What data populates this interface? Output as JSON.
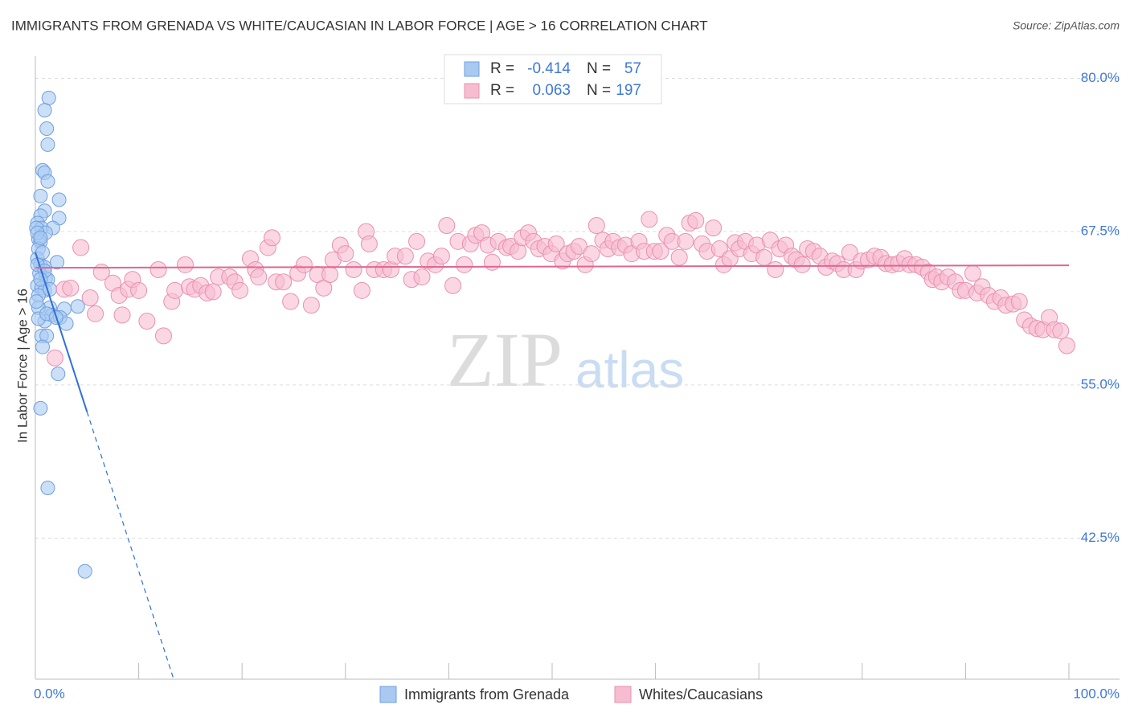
{
  "chart_data": {
    "type": "scatter",
    "title": "IMMIGRANTS FROM GRENADA VS WHITE/CAUCASIAN IN LABOR FORCE | AGE > 16 CORRELATION CHART",
    "source": "Source: ZipAtlas.com",
    "y_label": "In Labor Force | Age > 16",
    "watermark": [
      "ZIP",
      "atlas"
    ],
    "legend_labels": {
      "r": "R =",
      "n": "N ="
    },
    "xlim": [
      0,
      100
    ],
    "ylim": [
      31,
      81.8
    ],
    "xticks": [
      {
        "value": 0,
        "label": "0.0%"
      },
      {
        "value": 100,
        "label": "100.0%"
      }
    ],
    "xminor_ticks": [
      10,
      20,
      30,
      40,
      50,
      60,
      70,
      80,
      90
    ],
    "yticks": [
      {
        "value": 42.5,
        "label": "42.5%"
      },
      {
        "value": 55,
        "label": "55.0%"
      },
      {
        "value": 67.5,
        "label": "67.5%"
      },
      {
        "value": 80,
        "label": "80.0%"
      }
    ],
    "grid": true,
    "series": [
      {
        "name": "Immigrants from Grenada",
        "color": "#a9c9f1",
        "stroke": "#6fa0e0",
        "line_color": "#2f6fd6",
        "r": -0.414,
        "n": 57,
        "trend": {
          "intercept": 65.8,
          "slope": -2.6,
          "solid_until": 5
        },
        "x": [
          1.3,
          0.9,
          1.1,
          1.2,
          0.7,
          0.9,
          1.2,
          0.5,
          2.3,
          0.9,
          0.5,
          2.3,
          0.2,
          0.6,
          1.7,
          0.1,
          1.0,
          0.3,
          0.5,
          0.3,
          0.2,
          0.5,
          0.9,
          2.1,
          0.4,
          1.0,
          1.2,
          0.2,
          0.6,
          0.9,
          0.3,
          1.4,
          0.3,
          2.8,
          4.1,
          1.6,
          0.9,
          2.4,
          3.0,
          0.3,
          0.6,
          1.1,
          0.7,
          2.2,
          0.5,
          1.2,
          4.8,
          0.2,
          0.5,
          0.7,
          0.2,
          0.9,
          0.5,
          1.4,
          1.1,
          0.1,
          2.0
        ],
        "values": [
          78.4,
          77.4,
          75.9,
          74.6,
          72.5,
          72.3,
          71.6,
          70.4,
          70.1,
          69.2,
          68.8,
          68.6,
          68.2,
          67.8,
          67.8,
          67.8,
          67.4,
          66.9,
          66.7,
          66.1,
          65.3,
          64.8,
          64.6,
          65.0,
          64.1,
          63.7,
          63.6,
          63.1,
          62.9,
          62.7,
          62.3,
          61.3,
          61.3,
          61.2,
          61.4,
          60.7,
          60.2,
          60.5,
          60.0,
          60.4,
          59.0,
          59.0,
          58.1,
          55.9,
          53.1,
          46.6,
          39.8,
          67.4,
          67.0,
          65.8,
          64.8,
          64.3,
          63.6,
          62.8,
          60.8,
          61.8,
          60.5
        ]
      },
      {
        "name": "Whites/Caucasians",
        "color": "#f6bcd0",
        "stroke": "#ea90b0",
        "line_color": "#e0668f",
        "r": 0.063,
        "n": 197,
        "trend": {
          "intercept": 64.55,
          "slope": 0.002
        },
        "x": [
          1.9,
          2.8,
          3.4,
          4.4,
          5.3,
          5.8,
          6.4,
          7.5,
          8.4,
          8.1,
          9.0,
          9.4,
          10.0,
          10.8,
          11.9,
          12.4,
          13.2,
          13.5,
          14.5,
          14.9,
          15.4,
          16.0,
          16.6,
          17.2,
          17.7,
          18.8,
          19.3,
          19.8,
          20.8,
          21.3,
          21.6,
          22.5,
          22.9,
          23.3,
          24.0,
          24.7,
          25.4,
          26.0,
          26.7,
          27.3,
          27.9,
          28.5,
          28.8,
          29.5,
          30.0,
          30.8,
          31.6,
          32.0,
          32.3,
          32.8,
          33.7,
          34.4,
          34.8,
          35.8,
          36.4,
          36.9,
          37.4,
          38.0,
          38.7,
          39.3,
          39.8,
          40.4,
          40.9,
          41.5,
          42.1,
          42.6,
          43.2,
          43.8,
          44.2,
          44.8,
          45.6,
          46.0,
          46.7,
          47.1,
          47.7,
          48.2,
          48.7,
          49.3,
          49.9,
          50.4,
          51.0,
          51.5,
          52.1,
          52.6,
          53.2,
          53.8,
          54.3,
          54.9,
          55.4,
          55.9,
          56.5,
          57.1,
          57.7,
          58.4,
          58.9,
          59.4,
          59.9,
          60.5,
          61.1,
          61.6,
          62.3,
          62.9,
          63.3,
          63.9,
          64.5,
          65.0,
          65.6,
          66.2,
          66.6,
          67.2,
          67.7,
          68.1,
          68.7,
          69.3,
          69.8,
          70.5,
          71.1,
          71.6,
          72.0,
          72.6,
          73.2,
          73.6,
          74.2,
          74.7,
          75.3,
          75.9,
          76.5,
          77.1,
          77.6,
          78.2,
          78.8,
          79.4,
          79.9,
          80.6,
          81.2,
          81.8,
          82.3,
          82.9,
          83.5,
          84.1,
          84.6,
          85.2,
          85.8,
          86.4,
          86.8,
          87.2,
          87.7,
          88.3,
          89.0,
          89.5,
          90.0,
          90.7,
          91.1,
          91.6,
          92.2,
          92.8,
          93.4,
          93.9,
          94.6,
          95.2,
          95.7,
          96.3,
          96.9,
          97.5,
          98.1,
          98.6,
          99.2,
          99.8
        ],
        "values": [
          57.2,
          62.8,
          62.9,
          66.2,
          62.1,
          60.8,
          64.2,
          63.3,
          60.7,
          62.3,
          62.8,
          63.6,
          62.7,
          60.2,
          64.4,
          59.0,
          61.8,
          62.7,
          64.8,
          63.0,
          62.8,
          63.1,
          62.5,
          62.6,
          63.8,
          63.8,
          63.4,
          62.7,
          65.3,
          64.4,
          63.8,
          66.2,
          67.0,
          63.4,
          63.4,
          61.8,
          64.1,
          64.8,
          61.5,
          64.0,
          62.9,
          64.0,
          65.2,
          66.4,
          65.7,
          64.4,
          62.7,
          67.5,
          66.5,
          64.4,
          64.4,
          64.4,
          65.5,
          65.5,
          63.6,
          66.7,
          63.8,
          65.1,
          64.8,
          65.5,
          68.0,
          63.1,
          66.7,
          64.8,
          66.5,
          67.2,
          67.4,
          66.4,
          65.0,
          66.7,
          66.2,
          66.3,
          65.9,
          67.0,
          67.4,
          66.7,
          66.1,
          66.3,
          65.7,
          66.5,
          65.1,
          65.7,
          65.9,
          66.3,
          64.8,
          65.7,
          68.0,
          66.8,
          66.1,
          66.7,
          66.2,
          66.4,
          65.7,
          66.7,
          65.9,
          68.5,
          65.9,
          65.9,
          67.2,
          66.7,
          65.4,
          66.7,
          68.2,
          68.4,
          66.5,
          65.9,
          67.8,
          66.1,
          64.8,
          65.3,
          66.6,
          66.1,
          66.7,
          65.7,
          66.4,
          65.4,
          66.8,
          64.4,
          66.1,
          66.4,
          65.5,
          65.2,
          64.8,
          66.1,
          65.9,
          65.5,
          64.6,
          65.1,
          64.9,
          64.4,
          65.8,
          64.4,
          65.1,
          65.2,
          65.5,
          65.4,
          64.9,
          64.8,
          64.9,
          65.3,
          64.8,
          64.8,
          64.6,
          64.2,
          63.6,
          63.8,
          63.4,
          63.8,
          63.4,
          62.7,
          62.7,
          64.1,
          62.5,
          63.0,
          62.3,
          61.8,
          62.1,
          61.5,
          61.6,
          61.8,
          60.3,
          59.8,
          59.6,
          59.5,
          60.5,
          59.5,
          59.4,
          58.2
        ]
      }
    ]
  }
}
